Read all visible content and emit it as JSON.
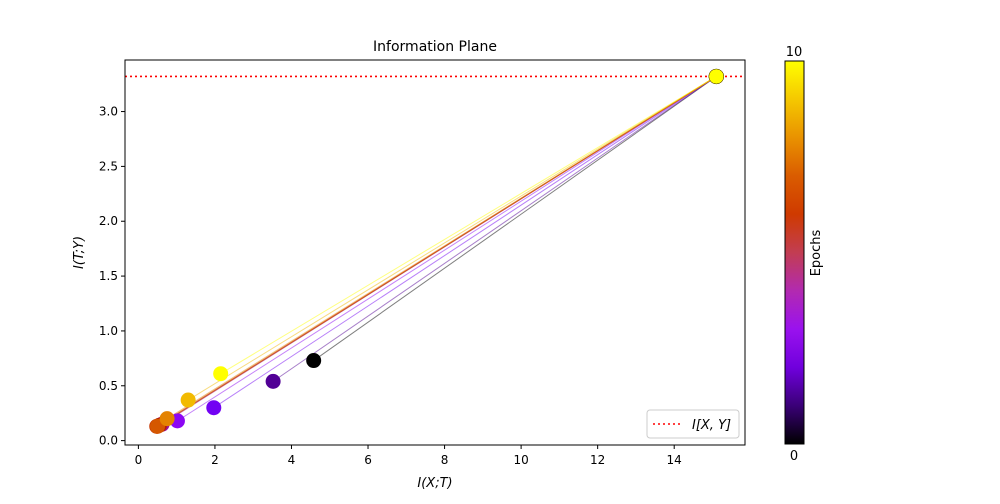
{
  "chart_data": {
    "type": "scatter",
    "title": "Information Plane",
    "xlabel": "I(X;T)",
    "ylabel": "I(T;Y)",
    "xlim": [
      -0.35,
      15.85
    ],
    "ylim": [
      -0.04,
      3.47
    ],
    "x_ticks": [
      0,
      2,
      4,
      6,
      8,
      10,
      12,
      14
    ],
    "y_ticks": [
      0.0,
      0.5,
      1.0,
      1.5,
      2.0,
      2.5,
      3.0
    ],
    "reference_line": {
      "label": "I[X, Y]",
      "y": 3.32,
      "style": "dotted",
      "color": "#ff0000"
    },
    "legend": {
      "placement": "lower-right",
      "entries": [
        "I[X, Y]"
      ]
    },
    "colorbar": {
      "label": "Epochs",
      "min": 0,
      "max": 10,
      "ticks": [
        0,
        10
      ],
      "colormap": "gnuplot"
    },
    "upper_point": {
      "x": 15.1,
      "y": 3.32
    },
    "series": [
      {
        "epoch": 0,
        "x": 4.58,
        "y": 0.73
      },
      {
        "epoch": 1,
        "x": 3.52,
        "y": 0.54
      },
      {
        "epoch": 2,
        "x": 1.97,
        "y": 0.3
      },
      {
        "epoch": 3,
        "x": 1.02,
        "y": 0.18
      },
      {
        "epoch": 4,
        "x": 0.62,
        "y": 0.15
      },
      {
        "epoch": 5,
        "x": 0.55,
        "y": 0.14
      },
      {
        "epoch": 6,
        "x": 0.48,
        "y": 0.13
      },
      {
        "epoch": 7,
        "x": 0.5,
        "y": 0.13
      },
      {
        "epoch": 8,
        "x": 0.75,
        "y": 0.2
      },
      {
        "epoch": 9,
        "x": 1.3,
        "y": 0.37
      },
      {
        "epoch": 10,
        "x": 2.15,
        "y": 0.61
      }
    ]
  }
}
